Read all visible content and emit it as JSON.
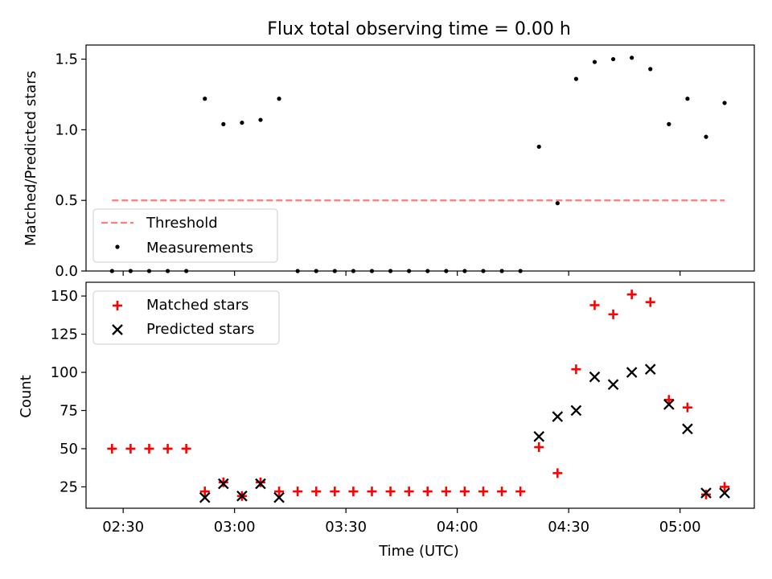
{
  "figure": {
    "title": "Flux total observing time = 0.00 h",
    "xlabel": "Time (UTC)",
    "xticks": [
      {
        "t": "2:30",
        "label": "02:30"
      },
      {
        "t": "3:00",
        "label": "03:00"
      },
      {
        "t": "3:30",
        "label": "03:30"
      },
      {
        "t": "4:00",
        "label": "04:00"
      },
      {
        "t": "4:30",
        "label": "04:30"
      },
      {
        "t": "5:00",
        "label": "05:00"
      }
    ],
    "xlim": [
      "2:20",
      "5:20"
    ]
  },
  "colors": {
    "threshold": "#ff7f7f",
    "measurements": "#000000",
    "matched": "#ff0000",
    "predicted": "#000000"
  },
  "chart_data": [
    {
      "type": "scatter",
      "ylabel": "Matched/Predicted stars",
      "ylim": [
        0,
        1.6
      ],
      "yticks": [
        "0.0",
        "0.5",
        "1.0",
        "1.5"
      ],
      "legend_position": "lower-left",
      "threshold": {
        "name": "Threshold",
        "value": 0.5,
        "x_start": "2:27",
        "x_end": "5:12"
      },
      "series": [
        {
          "name": "Measurements",
          "points": [
            [
              "2:27",
              0
            ],
            [
              "2:32",
              0
            ],
            [
              "2:37",
              0
            ],
            [
              "2:42",
              0
            ],
            [
              "2:47",
              0
            ],
            [
              "2:52",
              1.22
            ],
            [
              "2:57",
              1.04
            ],
            [
              "3:02",
              1.05
            ],
            [
              "3:07",
              1.07
            ],
            [
              "3:12",
              1.22
            ],
            [
              "3:17",
              0
            ],
            [
              "3:22",
              0
            ],
            [
              "3:27",
              0
            ],
            [
              "3:32",
              0
            ],
            [
              "3:37",
              0
            ],
            [
              "3:42",
              0
            ],
            [
              "3:47",
              0
            ],
            [
              "3:52",
              0
            ],
            [
              "3:57",
              0
            ],
            [
              "4:02",
              0
            ],
            [
              "4:07",
              0
            ],
            [
              "4:12",
              0
            ],
            [
              "4:17",
              0
            ],
            [
              "4:22",
              0.88
            ],
            [
              "4:27",
              0.48
            ],
            [
              "4:32",
              1.36
            ],
            [
              "4:37",
              1.48
            ],
            [
              "4:42",
              1.5
            ],
            [
              "4:47",
              1.51
            ],
            [
              "4:52",
              1.43
            ],
            [
              "4:57",
              1.04
            ],
            [
              "5:02",
              1.22
            ],
            [
              "5:07",
              0.95
            ],
            [
              "5:12",
              1.19
            ]
          ]
        }
      ]
    },
    {
      "type": "scatter",
      "ylabel": "Count",
      "ylim": [
        11,
        159
      ],
      "yticks": [
        "25",
        "50",
        "75",
        "100",
        "125",
        "150"
      ],
      "legend_position": "upper-left",
      "series": [
        {
          "name": "Matched stars",
          "marker": "plus",
          "points": [
            [
              "2:27",
              50
            ],
            [
              "2:32",
              50
            ],
            [
              "2:37",
              50
            ],
            [
              "2:42",
              50
            ],
            [
              "2:47",
              50
            ],
            [
              "2:52",
              22
            ],
            [
              "2:57",
              28
            ],
            [
              "3:02",
              19
            ],
            [
              "3:07",
              28
            ],
            [
              "3:12",
              22
            ],
            [
              "3:17",
              22
            ],
            [
              "3:22",
              22
            ],
            [
              "3:27",
              22
            ],
            [
              "3:32",
              22
            ],
            [
              "3:37",
              22
            ],
            [
              "3:42",
              22
            ],
            [
              "3:47",
              22
            ],
            [
              "3:52",
              22
            ],
            [
              "3:57",
              22
            ],
            [
              "4:02",
              22
            ],
            [
              "4:07",
              22
            ],
            [
              "4:12",
              22
            ],
            [
              "4:17",
              22
            ],
            [
              "4:22",
              51
            ],
            [
              "4:27",
              34
            ],
            [
              "4:32",
              102
            ],
            [
              "4:37",
              144
            ],
            [
              "4:42",
              138
            ],
            [
              "4:47",
              151
            ],
            [
              "4:52",
              146
            ],
            [
              "4:57",
              82
            ],
            [
              "5:02",
              77
            ],
            [
              "5:07",
              20
            ],
            [
              "5:12",
              25
            ]
          ]
        },
        {
          "name": "Predicted stars",
          "marker": "x",
          "points": [
            [
              "2:52",
              18
            ],
            [
              "2:57",
              27
            ],
            [
              "3:02",
              19
            ],
            [
              "3:07",
              27
            ],
            [
              "3:12",
              18
            ],
            [
              "4:22",
              58
            ],
            [
              "4:27",
              71
            ],
            [
              "4:32",
              75
            ],
            [
              "4:37",
              97
            ],
            [
              "4:42",
              92
            ],
            [
              "4:47",
              100
            ],
            [
              "4:52",
              102
            ],
            [
              "4:57",
              79
            ],
            [
              "5:02",
              63
            ],
            [
              "5:07",
              21
            ],
            [
              "5:12",
              21
            ]
          ]
        }
      ]
    }
  ]
}
